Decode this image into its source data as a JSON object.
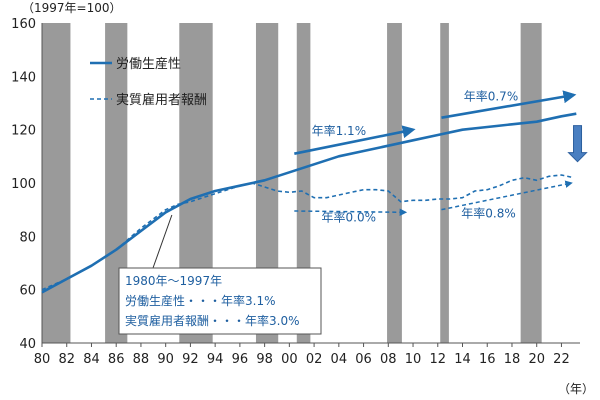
{
  "chart_data": {
    "type": "line",
    "y_unit_label": "（1997年=100）",
    "x_unit_label": "（年）",
    "xlim": [
      1980,
      2023.5
    ],
    "ylim": [
      40,
      160
    ],
    "yticks": [
      40,
      60,
      80,
      100,
      120,
      140,
      160
    ],
    "xticks": [
      {
        "year": 1980,
        "label": "80"
      },
      {
        "year": 1982,
        "label": "82"
      },
      {
        "year": 1984,
        "label": "84"
      },
      {
        "year": 1986,
        "label": "86"
      },
      {
        "year": 1988,
        "label": "88"
      },
      {
        "year": 1990,
        "label": "90"
      },
      {
        "year": 1992,
        "label": "92"
      },
      {
        "year": 1994,
        "label": "94"
      },
      {
        "year": 1996,
        "label": "96"
      },
      {
        "year": 1998,
        "label": "98"
      },
      {
        "year": 2000,
        "label": "00"
      },
      {
        "year": 2002,
        "label": "02"
      },
      {
        "year": 2004,
        "label": "04"
      },
      {
        "year": 2006,
        "label": "06"
      },
      {
        "year": 2008,
        "label": "08"
      },
      {
        "year": 2010,
        "label": "10"
      },
      {
        "year": 2012,
        "label": "12"
      },
      {
        "year": 2014,
        "label": "14"
      },
      {
        "year": 2016,
        "label": "16"
      },
      {
        "year": 2018,
        "label": "18"
      },
      {
        "year": 2020,
        "label": "20"
      },
      {
        "year": 2022,
        "label": "22"
      }
    ],
    "recession_bands": [
      [
        1980,
        1982.3
      ],
      [
        1985.1,
        1986.9
      ],
      [
        1991.1,
        1993.8
      ],
      [
        1997.3,
        1999.1
      ],
      [
        2000.6,
        2001.7
      ],
      [
        2007.9,
        2009.1
      ],
      [
        2012.2,
        2012.9
      ],
      [
        2018.7,
        2020.4
      ]
    ],
    "series": [
      {
        "name": "労働生産性",
        "style": "solid",
        "color": "#1f6fb2",
        "x": [
          1980,
          1982,
          1984,
          1986,
          1988,
          1990,
          1992,
          1994,
          1996,
          1998,
          2000,
          2002,
          2004,
          2006,
          2008,
          2010,
          2012,
          2014,
          2016,
          2018,
          2020,
          2022,
          2023.2
        ],
        "y": [
          59,
          64,
          69,
          75,
          82,
          89,
          94,
          97,
          99,
          101,
          104,
          107,
          110,
          112,
          114,
          116,
          118,
          120,
          121,
          122,
          123,
          125,
          126
        ]
      },
      {
        "name": "実質雇用者報酬",
        "style": "dashed",
        "color": "#1f6fb2",
        "x": [
          1980,
          1982,
          1984,
          1986,
          1988,
          1990,
          1991,
          1992,
          1994,
          1996,
          1997,
          1998,
          1999,
          2000,
          2001,
          2002,
          2003,
          2004,
          2005,
          2006,
          2007,
          2008,
          2009,
          2010,
          2011,
          2012,
          2013,
          2014,
          2015,
          2016,
          2017,
          2018,
          2019,
          2020,
          2021,
          2022,
          2023
        ],
        "y": [
          60,
          64,
          69,
          75,
          83,
          90,
          92,
          93,
          96,
          99,
          100,
          98.5,
          97,
          96.5,
          97,
          94.5,
          94.5,
          95.5,
          96.5,
          97.5,
          97.5,
          97,
          93,
          93.5,
          93.5,
          94,
          94,
          94.5,
          97,
          97.5,
          99,
          101,
          102,
          101,
          102.5,
          103,
          102
        ]
      }
    ],
    "trend_arrows": [
      {
        "label": "年率1.1%",
        "x0": 2000.4,
        "y0": 111,
        "x1": 2010,
        "y1": 120,
        "style": "solid",
        "label_year": 2001.8,
        "label_value": 118
      },
      {
        "label": "年率0.7%",
        "x0": 2012.3,
        "y0": 124.5,
        "x1": 2023,
        "y1": 133,
        "style": "solid",
        "label_year": 2014.1,
        "label_value": 131
      },
      {
        "label": "年率0.0%",
        "x0": 2000.4,
        "y0": 89.5,
        "x1": 2009.4,
        "y1": 89,
        "style": "dashed",
        "label_year": 2002.6,
        "label_value": 85.5
      },
      {
        "label": "年率0.8%",
        "x0": 2012.3,
        "y0": 90,
        "x1": 2022.8,
        "y1": 100,
        "style": "dashed",
        "label_year": 2013.9,
        "label_value": 87
      }
    ],
    "highlight_arrow": {
      "x": 2023.3,
      "y_top": 121.5,
      "y_bottom": 108
    },
    "legend": {
      "placement": "top-left",
      "items": [
        "労働生産性",
        "実質雇用者報酬"
      ]
    },
    "annotation_box": {
      "lines": [
        "1980年～1997年",
        "労働生産性・・・年率3.1%",
        "実質雇用者報酬・・・年率3.0%"
      ],
      "pointer_year": 1990.5,
      "pointer_value": 88
    },
    "grid": false
  }
}
